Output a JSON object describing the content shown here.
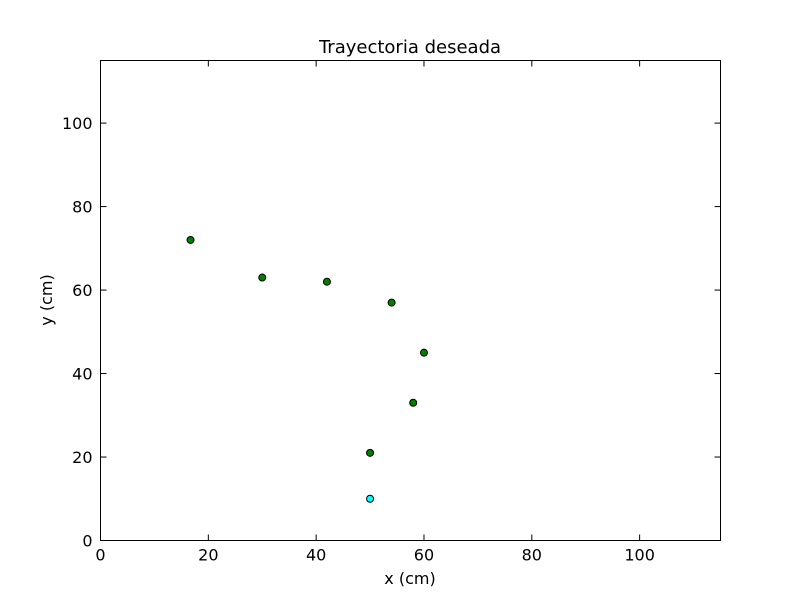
{
  "chart_data": {
    "type": "scatter",
    "title": "Trayectoria deseada",
    "xlabel": "x (cm)",
    "ylabel": "y (cm)",
    "xlim": [
      0,
      115
    ],
    "ylim": [
      0,
      115
    ],
    "xticks": [
      0,
      20,
      40,
      60,
      80,
      100
    ],
    "yticks": [
      0,
      20,
      40,
      60,
      80,
      100
    ],
    "grid": false,
    "series": [
      {
        "color": "#008000",
        "points": [
          {
            "x": 16.7,
            "y": 72
          },
          {
            "x": 30,
            "y": 63
          },
          {
            "x": 42,
            "y": 62
          },
          {
            "x": 54,
            "y": 57
          },
          {
            "x": 60,
            "y": 45
          },
          {
            "x": 58,
            "y": 33
          },
          {
            "x": 50,
            "y": 21
          }
        ]
      },
      {
        "color": "#00ffff",
        "points": [
          {
            "x": 50,
            "y": 10
          }
        ]
      }
    ]
  }
}
